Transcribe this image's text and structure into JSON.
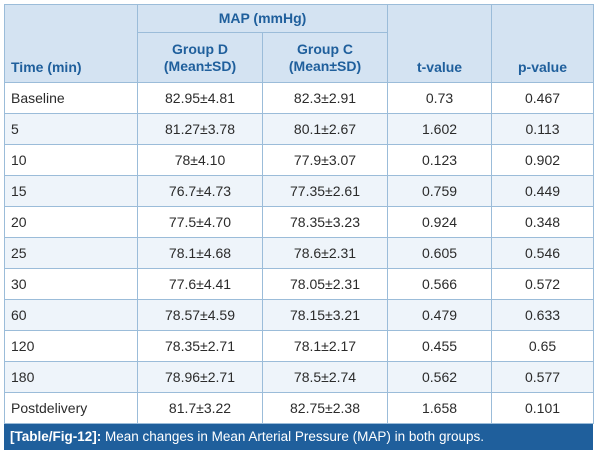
{
  "table": {
    "headers": {
      "time": "Time (min)",
      "map_group": "MAP (mmHg)",
      "group_d": "Group D",
      "group_d_sub": "(Mean±SD)",
      "group_c": "Group C",
      "group_c_sub": "(Mean±SD)",
      "t_value": "t-value",
      "p_value": "p-value"
    },
    "rows": [
      {
        "time": "Baseline",
        "group_d": "82.95±4.81",
        "group_c": "82.3±2.91",
        "t": "0.73",
        "p": "0.467"
      },
      {
        "time": "5",
        "group_d": "81.27±3.78",
        "group_c": "80.1±2.67",
        "t": "1.602",
        "p": "0.113"
      },
      {
        "time": "10",
        "group_d": "78±4.10",
        "group_c": "77.9±3.07",
        "t": "0.123",
        "p": "0.902"
      },
      {
        "time": "15",
        "group_d": "76.7±4.73",
        "group_c": "77.35±2.61",
        "t": "0.759",
        "p": "0.449"
      },
      {
        "time": "20",
        "group_d": "77.5±4.70",
        "group_c": "78.35±3.23",
        "t": "0.924",
        "p": "0.348"
      },
      {
        "time": "25",
        "group_d": "78.1±4.68",
        "group_c": "78.6±2.31",
        "t": "0.605",
        "p": "0.546"
      },
      {
        "time": "30",
        "group_d": "77.6±4.41",
        "group_c": "78.05±2.31",
        "t": "0.566",
        "p": "0.572"
      },
      {
        "time": "60",
        "group_d": "78.57±4.59",
        "group_c": "78.15±3.21",
        "t": "0.479",
        "p": "0.633"
      },
      {
        "time": "120",
        "group_d": "78.35±2.71",
        "group_c": "78.1±2.17",
        "t": "0.455",
        "p": "0.65"
      },
      {
        "time": "180",
        "group_d": "78.96±2.71",
        "group_c": "78.5±2.74",
        "t": "0.562",
        "p": "0.577"
      },
      {
        "time": "Postdelivery",
        "group_d": "81.7±3.22",
        "group_c": "82.75±2.38",
        "t": "1.658",
        "p": "0.101"
      }
    ]
  },
  "caption": {
    "tag": "[Table/Fig-12]:",
    "text": "Mean changes in Mean Arterial Pressure (MAP) in both groups."
  },
  "colors": {
    "header_bg": "#d4e3f2",
    "header_text": "#1f5f9c",
    "border": "#9bbcd9",
    "caption_bg": "#1f5f9c"
  }
}
